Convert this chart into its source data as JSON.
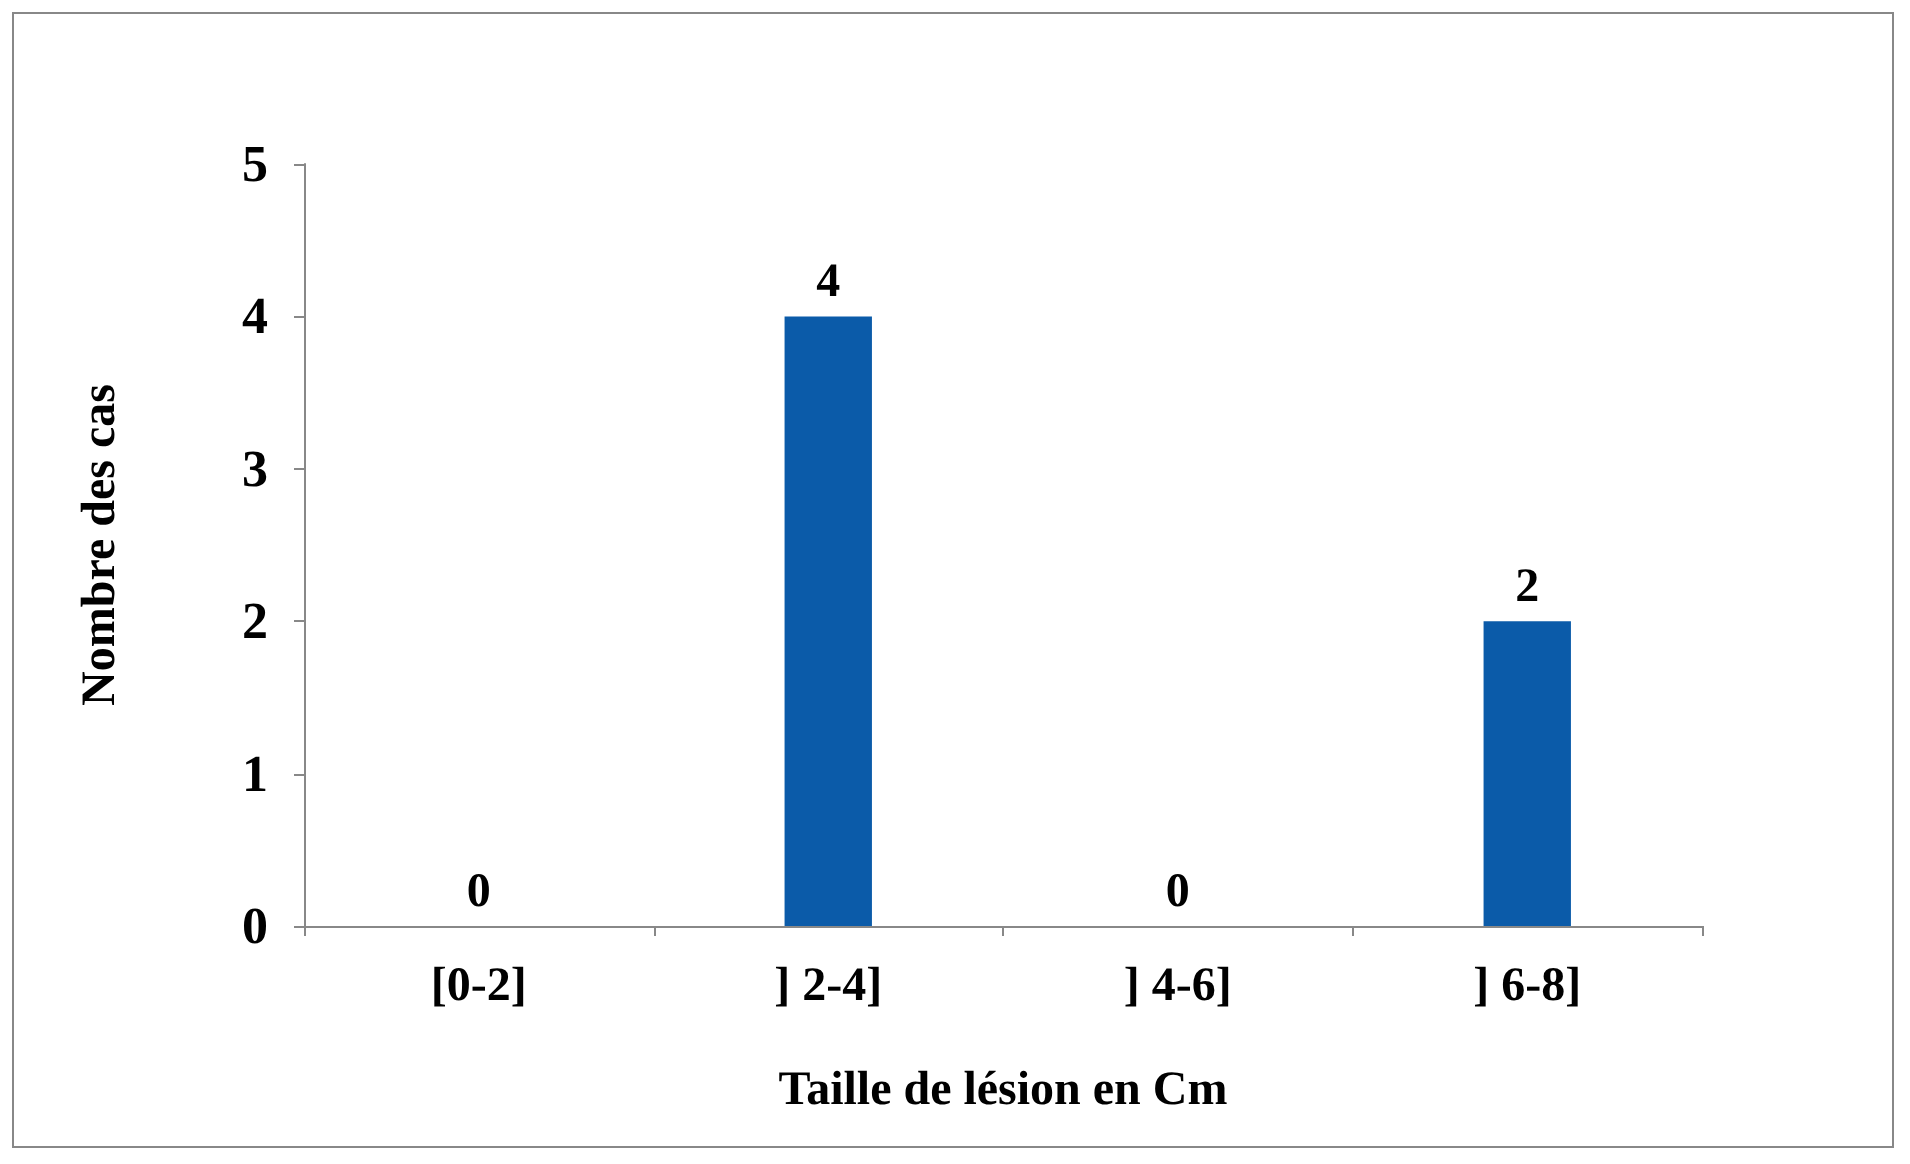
{
  "chart_data": {
    "type": "bar",
    "xlabel": "Taille de lésion en Cm",
    "ylabel": "Nombre des cas",
    "categories": [
      "[0-2]",
      "] 2-4]",
      "] 4-6]",
      "] 6-8]"
    ],
    "values": [
      0,
      4,
      0,
      2
    ],
    "color": "#0b5ba9",
    "ylim": [
      0,
      5
    ],
    "yticks": [
      0,
      1,
      2,
      3,
      4,
      5
    ],
    "grid": false,
    "data_labels": true
  }
}
